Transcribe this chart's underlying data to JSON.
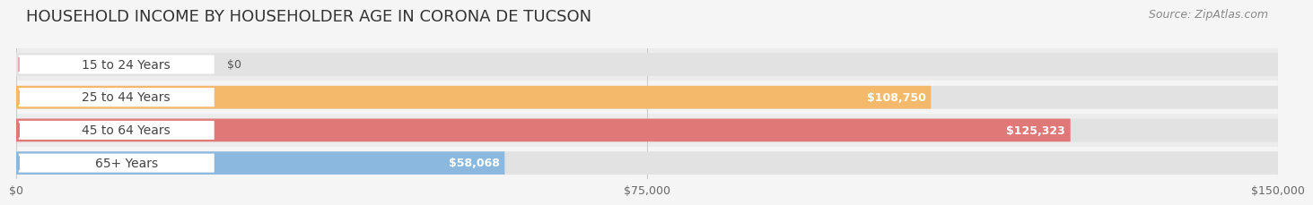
{
  "title": "HOUSEHOLD INCOME BY HOUSEHOLDER AGE IN CORONA DE TUCSON",
  "source": "Source: ZipAtlas.com",
  "categories": [
    "15 to 24 Years",
    "25 to 44 Years",
    "45 to 64 Years",
    "65+ Years"
  ],
  "values": [
    0,
    108750,
    125323,
    58068
  ],
  "bar_colors": [
    "#f2a7ba",
    "#f5b96b",
    "#e07878",
    "#8ab8de"
  ],
  "max_value": 150000,
  "xtick_values": [
    0,
    75000,
    150000
  ],
  "xtick_labels": [
    "$0",
    "$75,000",
    "$150,000"
  ],
  "bg_color": "#f5f5f5",
  "row_bg_even": "#ececec",
  "row_bg_odd": "#f5f5f5",
  "bar_track_color": "#e2e2e2",
  "value_labels": [
    "$0",
    "$108,750",
    "$125,323",
    "$58,068"
  ],
  "title_fontsize": 13,
  "source_fontsize": 9,
  "label_fontsize": 10,
  "value_fontsize": 9
}
